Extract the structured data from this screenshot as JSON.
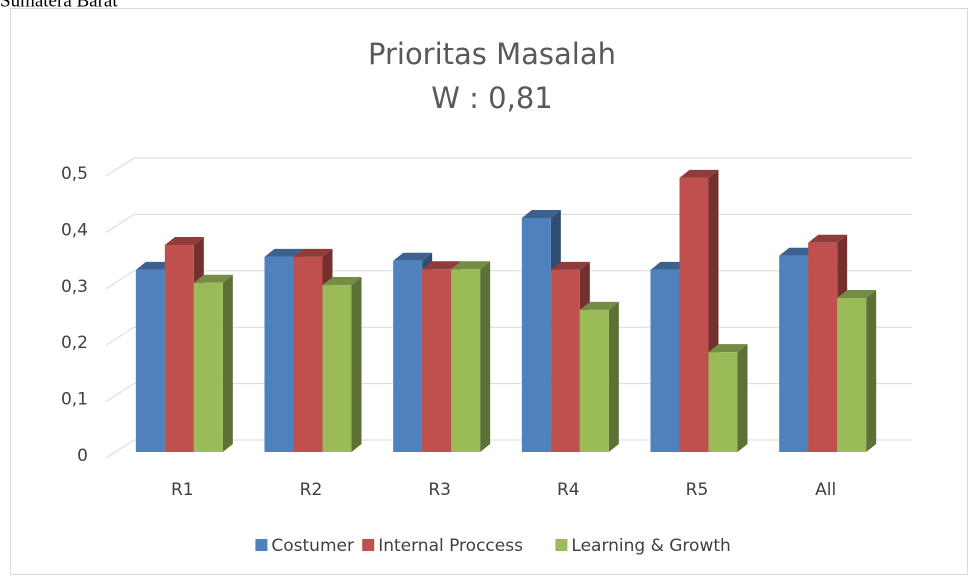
{
  "page_caption": "Sumatera Barat",
  "chart_data": {
    "type": "bar3d",
    "title": "Prioritas Masalah",
    "subtitle": "W : 0,81",
    "categories": [
      "R1",
      "R2",
      "R3",
      "R4",
      "R5",
      "All"
    ],
    "series": [
      {
        "name": "Costumer",
        "color": "#4f81bd",
        "values": [
          0.323,
          0.346,
          0.339,
          0.415,
          0.323,
          0.348
        ]
      },
      {
        "name": "Internal Proccess",
        "color": "#c0504d",
        "values": [
          0.367,
          0.346,
          0.324,
          0.323,
          0.486,
          0.371
        ]
      },
      {
        "name": "Learning & Growth",
        "color": "#9bbb59",
        "values": [
          0.3,
          0.296,
          0.324,
          0.252,
          0.177,
          0.273
        ]
      }
    ],
    "ylim": [
      0,
      0.5
    ],
    "yticks": [
      0,
      {
        "value": 0.1,
        "label": "0,1"
      },
      {
        "value": 0.2,
        "label": "0,2"
      },
      {
        "value": 0.3,
        "label": "0,3"
      },
      {
        "value": 0.4,
        "label": "0,4"
      },
      {
        "value": 0.5,
        "label": "0,5"
      }
    ],
    "grid": true,
    "legend": "bottom"
  }
}
